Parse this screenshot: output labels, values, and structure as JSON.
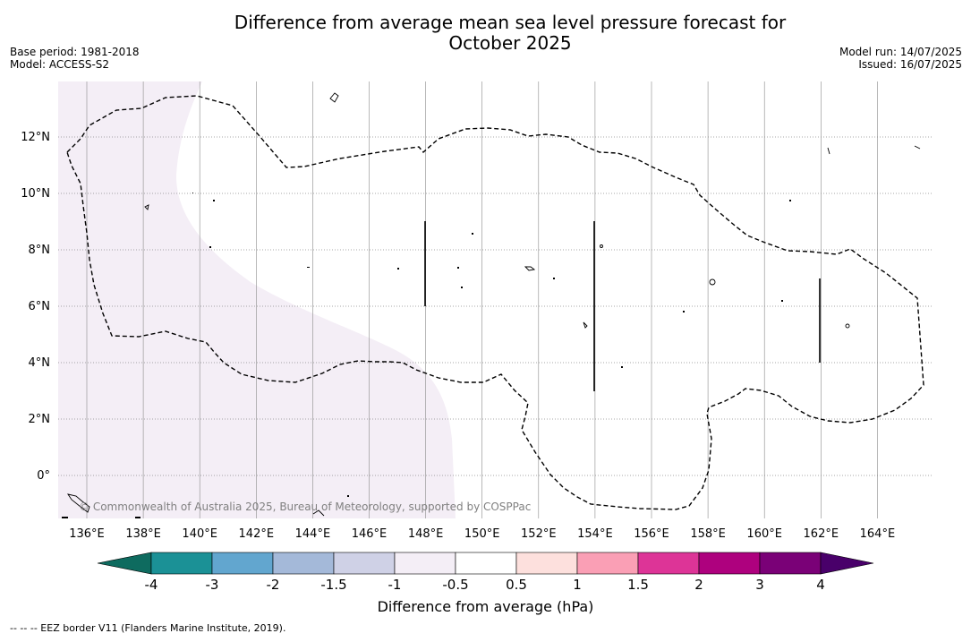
{
  "title_line1": "Difference from average mean sea level pressure forecast for",
  "title_line2": "October 2025",
  "base_period": "Base period: 1981-2018",
  "model": "Model: ACCESS-S2",
  "model_run": "Model run: 14/07/2025",
  "issued": "Issued: 16/07/2025",
  "copyright": "© Commonwealth of Australia 2025, Bureau of Meteorology, supported by COSPPac",
  "colorbar_title": "Difference from average (hPa)",
  "footnote": "--  --  -- EEZ border V11 (Flanders Marine Institute, 2019).",
  "map_data": {
    "lon_labels": [
      "136°E",
      "138°E",
      "140°E",
      "142°E",
      "144°E",
      "146°E",
      "148°E",
      "150°E",
      "152°E",
      "154°E",
      "156°E",
      "158°E",
      "160°E",
      "162°E",
      "164°E"
    ],
    "lat_labels": [
      "12°N",
      "10°N",
      "8°N",
      "6°N",
      "4°N",
      "2°N",
      "0°"
    ],
    "lon_range": [
      135,
      166
    ],
    "lat_range": [
      -1.5,
      14
    ],
    "grid": true,
    "colorbar": {
      "levels": [
        "-4",
        "-3",
        "-2",
        "-1.5",
        "-1",
        "-0.5",
        "0.5",
        "1",
        "1.5",
        "2",
        "3",
        "4"
      ],
      "colors": [
        "#1b9196",
        "#62a6cf",
        "#a4b9d9",
        "#cfd1e6",
        "#f4eef6",
        "#ffffff",
        "#fde0dd",
        "#fa9fb5",
        "#dd3497",
        "#ae017e",
        "#7a0177"
      ],
      "under_color": "#0e6b5f",
      "over_color": "#49006a"
    },
    "shaded_region": {
      "value_band": "-1 to -0.5",
      "color": "#f4eef6"
    }
  }
}
